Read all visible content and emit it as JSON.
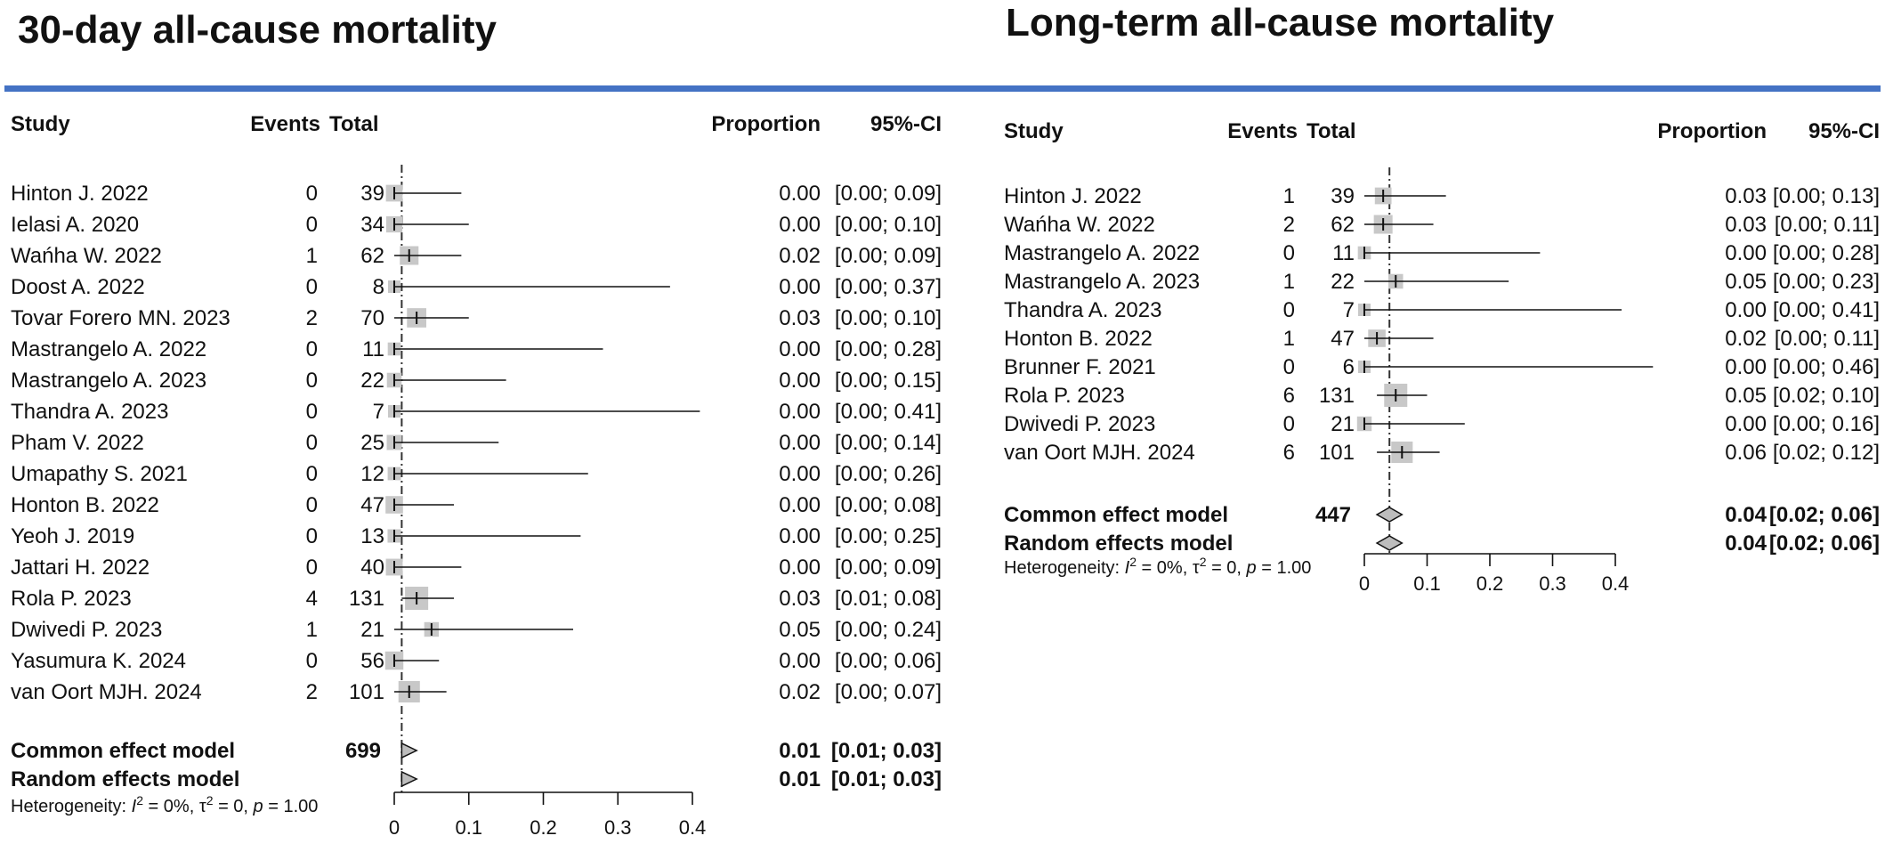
{
  "colors": {
    "accent_rule": "#4472c4",
    "box": "#c8c8c8",
    "line": "#111111",
    "diamond_fill": "#bdbdbd",
    "reference": "#333333"
  },
  "chart_data": [
    {
      "type": "forest",
      "title": "30-day all-cause mortality",
      "headers": {
        "study": "Study",
        "events": "Events",
        "total": "Total",
        "proportion": "Proportion",
        "ci": "95%-CI"
      },
      "xlim": [
        0,
        0.4
      ],
      "ticks": [
        0,
        0.1,
        0.2,
        0.3,
        0.4
      ],
      "tick_labels": [
        "0",
        "0.1",
        "0.2",
        "0.3",
        "0.4"
      ],
      "reference_line": 0.01,
      "studies": [
        {
          "study": "Hinton J. 2022",
          "events": "0",
          "total": "39",
          "proportion": 0.0,
          "lower": 0.0,
          "upper": 0.09,
          "prop_text": "0.00",
          "ci_text": "[0.00; 0.09]"
        },
        {
          "study": "Ielasi A. 2020",
          "events": "0",
          "total": "34",
          "proportion": 0.0,
          "lower": 0.0,
          "upper": 0.1,
          "prop_text": "0.00",
          "ci_text": "[0.00; 0.10]"
        },
        {
          "study": "Wańha W. 2022",
          "events": "1",
          "total": "62",
          "proportion": 0.02,
          "lower": 0.0,
          "upper": 0.09,
          "prop_text": "0.02",
          "ci_text": "[0.00; 0.09]"
        },
        {
          "study": "Doost A. 2022",
          "events": "0",
          "total": "8",
          "proportion": 0.0,
          "lower": 0.0,
          "upper": 0.37,
          "prop_text": "0.00",
          "ci_text": "[0.00; 0.37]"
        },
        {
          "study": "Tovar Forero MN. 2023",
          "events": "2",
          "total": "70",
          "proportion": 0.03,
          "lower": 0.0,
          "upper": 0.1,
          "prop_text": "0.03",
          "ci_text": "[0.00; 0.10]"
        },
        {
          "study": "Mastrangelo A. 2022",
          "events": "0",
          "total": "11",
          "proportion": 0.0,
          "lower": 0.0,
          "upper": 0.28,
          "prop_text": "0.00",
          "ci_text": "[0.00; 0.28]"
        },
        {
          "study": "Mastrangelo A. 2023",
          "events": "0",
          "total": "22",
          "proportion": 0.0,
          "lower": 0.0,
          "upper": 0.15,
          "prop_text": "0.00",
          "ci_text": "[0.00; 0.15]"
        },
        {
          "study": "Thandra A. 2023",
          "events": "0",
          "total": "7",
          "proportion": 0.0,
          "lower": 0.0,
          "upper": 0.41,
          "prop_text": "0.00",
          "ci_text": "[0.00; 0.41]"
        },
        {
          "study": "Pham V. 2022",
          "events": "0",
          "total": "25",
          "proportion": 0.0,
          "lower": 0.0,
          "upper": 0.14,
          "prop_text": "0.00",
          "ci_text": "[0.00; 0.14]"
        },
        {
          "study": "Umapathy S. 2021",
          "events": "0",
          "total": "12",
          "proportion": 0.0,
          "lower": 0.0,
          "upper": 0.26,
          "prop_text": "0.00",
          "ci_text": "[0.00; 0.26]"
        },
        {
          "study": "Honton B. 2022",
          "events": "0",
          "total": "47",
          "proportion": 0.0,
          "lower": 0.0,
          "upper": 0.08,
          "prop_text": "0.00",
          "ci_text": "[0.00; 0.08]"
        },
        {
          "study": "Yeoh J. 2019",
          "events": "0",
          "total": "13",
          "proportion": 0.0,
          "lower": 0.0,
          "upper": 0.25,
          "prop_text": "0.00",
          "ci_text": "[0.00; 0.25]"
        },
        {
          "study": "Jattari H. 2022",
          "events": "0",
          "total": "40",
          "proportion": 0.0,
          "lower": 0.0,
          "upper": 0.09,
          "prop_text": "0.00",
          "ci_text": "[0.00; 0.09]"
        },
        {
          "study": "Rola P. 2023",
          "events": "4",
          "total": "131",
          "proportion": 0.03,
          "lower": 0.01,
          "upper": 0.08,
          "prop_text": "0.03",
          "ci_text": "[0.01; 0.08]"
        },
        {
          "study": "Dwivedi P. 2023",
          "events": "1",
          "total": "21",
          "proportion": 0.05,
          "lower": 0.0,
          "upper": 0.24,
          "prop_text": "0.05",
          "ci_text": "[0.00; 0.24]"
        },
        {
          "study": "Yasumura K. 2024",
          "events": "0",
          "total": "56",
          "proportion": 0.0,
          "lower": 0.0,
          "upper": 0.06,
          "prop_text": "0.00",
          "ci_text": "[0.00; 0.06]"
        },
        {
          "study": "van Oort MJH. 2024",
          "events": "2",
          "total": "101",
          "proportion": 0.02,
          "lower": 0.0,
          "upper": 0.07,
          "prop_text": "0.02",
          "ci_text": "[0.00; 0.07]"
        }
      ],
      "pooled": [
        {
          "label": "Common effect model",
          "total": "699",
          "estimate": 0.01,
          "lower": 0.01,
          "upper": 0.03,
          "prop_text": "0.01",
          "ci_text": "[0.01; 0.03]"
        },
        {
          "label": "Random effects model",
          "total": "",
          "estimate": 0.01,
          "lower": 0.01,
          "upper": 0.03,
          "prop_text": "0.01",
          "ci_text": "[0.01; 0.03]"
        }
      ],
      "heterogeneity": {
        "prefix": "Heterogeneity: ",
        "i2_symbol": "I",
        "i2_sup": "2",
        "i2_value": " = 0%, ",
        "tau_symbol": "τ",
        "tau_sup": "2",
        "tau_value": " = 0, ",
        "p_symbol": "p",
        "p_value": " = 1.00"
      }
    },
    {
      "type": "forest",
      "title": "Long-term all-cause mortality",
      "headers": {
        "study": "Study",
        "events": "Events",
        "total": "Total",
        "proportion": "Proportion",
        "ci": "95%-CI"
      },
      "xlim": [
        0,
        0.4
      ],
      "ticks": [
        0,
        0.1,
        0.2,
        0.3,
        0.4
      ],
      "tick_labels": [
        "0",
        "0.1",
        "0.2",
        "0.3",
        "0.4"
      ],
      "reference_line": 0.04,
      "studies": [
        {
          "study": "Hinton J. 2022",
          "events": "1",
          "total": "39",
          "proportion": 0.03,
          "lower": 0.0,
          "upper": 0.13,
          "prop_text": "0.03",
          "ci_text": "[0.00; 0.13]"
        },
        {
          "study": "Wańha W. 2022",
          "events": "2",
          "total": "62",
          "proportion": 0.03,
          "lower": 0.0,
          "upper": 0.11,
          "prop_text": "0.03",
          "ci_text": "[0.00; 0.11]"
        },
        {
          "study": "Mastrangelo A. 2022",
          "events": "0",
          "total": "11",
          "proportion": 0.0,
          "lower": 0.0,
          "upper": 0.28,
          "prop_text": "0.00",
          "ci_text": "[0.00; 0.28]"
        },
        {
          "study": "Mastrangelo A. 2023",
          "events": "1",
          "total": "22",
          "proportion": 0.05,
          "lower": 0.0,
          "upper": 0.23,
          "prop_text": "0.05",
          "ci_text": "[0.00; 0.23]"
        },
        {
          "study": "Thandra A. 2023",
          "events": "0",
          "total": "7",
          "proportion": 0.0,
          "lower": 0.0,
          "upper": 0.41,
          "prop_text": "0.00",
          "ci_text": "[0.00; 0.41]"
        },
        {
          "study": "Honton B. 2022",
          "events": "1",
          "total": "47",
          "proportion": 0.02,
          "lower": 0.0,
          "upper": 0.11,
          "prop_text": "0.02",
          "ci_text": "[0.00; 0.11]"
        },
        {
          "study": "Brunner F. 2021",
          "events": "0",
          "total": "6",
          "proportion": 0.0,
          "lower": 0.0,
          "upper": 0.46,
          "prop_text": "0.00",
          "ci_text": "[0.00; 0.46]"
        },
        {
          "study": "Rola P. 2023",
          "events": "6",
          "total": "131",
          "proportion": 0.05,
          "lower": 0.02,
          "upper": 0.1,
          "prop_text": "0.05",
          "ci_text": "[0.02; 0.10]"
        },
        {
          "study": "Dwivedi P. 2023",
          "events": "0",
          "total": "21",
          "proportion": 0.0,
          "lower": 0.0,
          "upper": 0.16,
          "prop_text": "0.00",
          "ci_text": "[0.00; 0.16]"
        },
        {
          "study": "van Oort MJH. 2024",
          "events": "6",
          "total": "101",
          "proportion": 0.06,
          "lower": 0.02,
          "upper": 0.12,
          "prop_text": "0.06",
          "ci_text": "[0.02; 0.12]"
        }
      ],
      "pooled": [
        {
          "label": "Common effect model",
          "total": "447",
          "estimate": 0.04,
          "lower": 0.02,
          "upper": 0.06,
          "prop_text": "0.04",
          "ci_text": "[0.02; 0.06]"
        },
        {
          "label": "Random effects model",
          "total": "",
          "estimate": 0.04,
          "lower": 0.02,
          "upper": 0.06,
          "prop_text": "0.04",
          "ci_text": "[0.02; 0.06]"
        }
      ],
      "heterogeneity": {
        "prefix": "Heterogeneity: ",
        "i2_symbol": "I",
        "i2_sup": "2",
        "i2_value": " = 0%, ",
        "tau_symbol": "τ",
        "tau_sup": "2",
        "tau_value": " = 0, ",
        "p_symbol": "p",
        "p_value": " = 1.00"
      }
    }
  ]
}
